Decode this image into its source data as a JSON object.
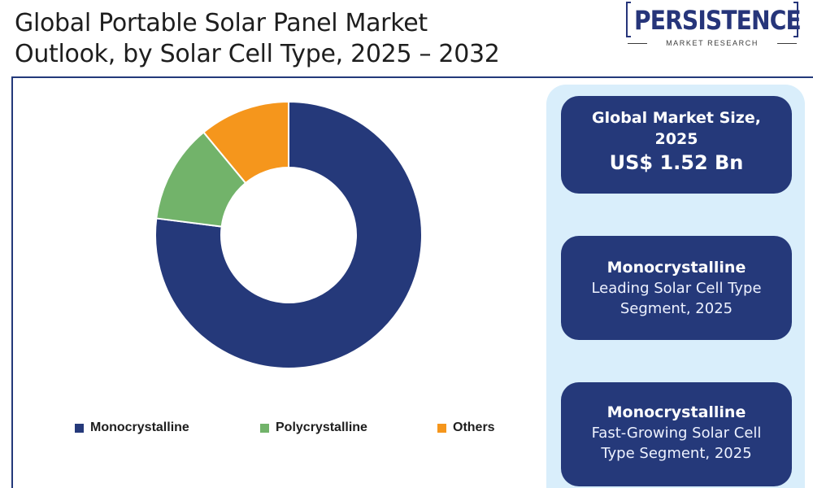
{
  "header": {
    "title_line1": "Global Portable Solar Panel Market",
    "title_line2": "Outlook, by Solar Cell Type, 2025 – 2032"
  },
  "logo": {
    "main": "PERSISTENCE",
    "sub": "MARKET RESEARCH"
  },
  "chart_data": {
    "type": "pie",
    "donut": true,
    "title": "Global Portable Solar Panel Market Outlook, by Solar Cell Type, 2025 – 2032",
    "categories": [
      "Monocrystalline",
      "Polycrystalline",
      "Others"
    ],
    "values": [
      77,
      12,
      11
    ],
    "unit": "%",
    "colors": [
      "#25397a",
      "#72b36a",
      "#f5961c"
    ],
    "legend_position": "bottom"
  },
  "cards": [
    {
      "line1": "Global Market Size,",
      "line2": "2025",
      "line3": "US$ 1.52 Bn"
    },
    {
      "line1": "Monocrystalline",
      "line2": "Leading Solar Cell Type",
      "line3": "Segment, 2025"
    },
    {
      "line1": "Monocrystalline",
      "line2": "Fast-Growing Solar Cell",
      "line3": "Type Segment, 2025"
    }
  ],
  "colors": {
    "navy": "#25397a",
    "green": "#72b36a",
    "orange": "#f5961c",
    "panel_bg": "#d9eefb"
  }
}
